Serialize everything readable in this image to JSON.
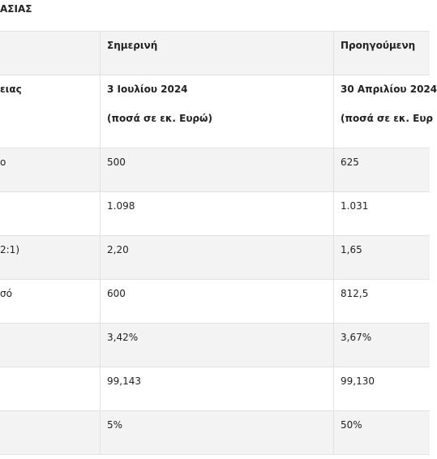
{
  "header": {
    "title": "ΑΣΙΑΣ"
  },
  "table": {
    "columns": [
      "Σημερινή",
      "Προηγούμενη"
    ],
    "rows": [
      {
        "label": "ειας",
        "cells": [
          [
            "3 Ιουλίου 2024",
            "(ποσά σε εκ. Ευρώ)"
          ],
          [
            "30 Απριλίου 2024",
            "(ποσά σε εκ. Ευρ"
          ]
        ]
      },
      {
        "label": "ο",
        "cells": [
          [
            "500"
          ],
          [
            "625"
          ]
        ]
      },
      {
        "cells": [
          [
            "1.098"
          ],
          [
            "1.031"
          ]
        ]
      },
      {
        "label": "2:1)",
        "cells": [
          [
            "2,20"
          ],
          [
            "1,65"
          ]
        ]
      },
      {
        "label": "σό",
        "cells": [
          [
            "600"
          ],
          [
            "812,5"
          ]
        ]
      },
      {
        "cells": [
          [
            "3,42%"
          ],
          [
            "3,67%"
          ]
        ]
      },
      {
        "cells": [
          [
            "99,143"
          ],
          [
            "99,130"
          ]
        ]
      },
      {
        "cells": [
          [
            "5%"
          ],
          [
            "50%"
          ]
        ]
      }
    ]
  }
}
